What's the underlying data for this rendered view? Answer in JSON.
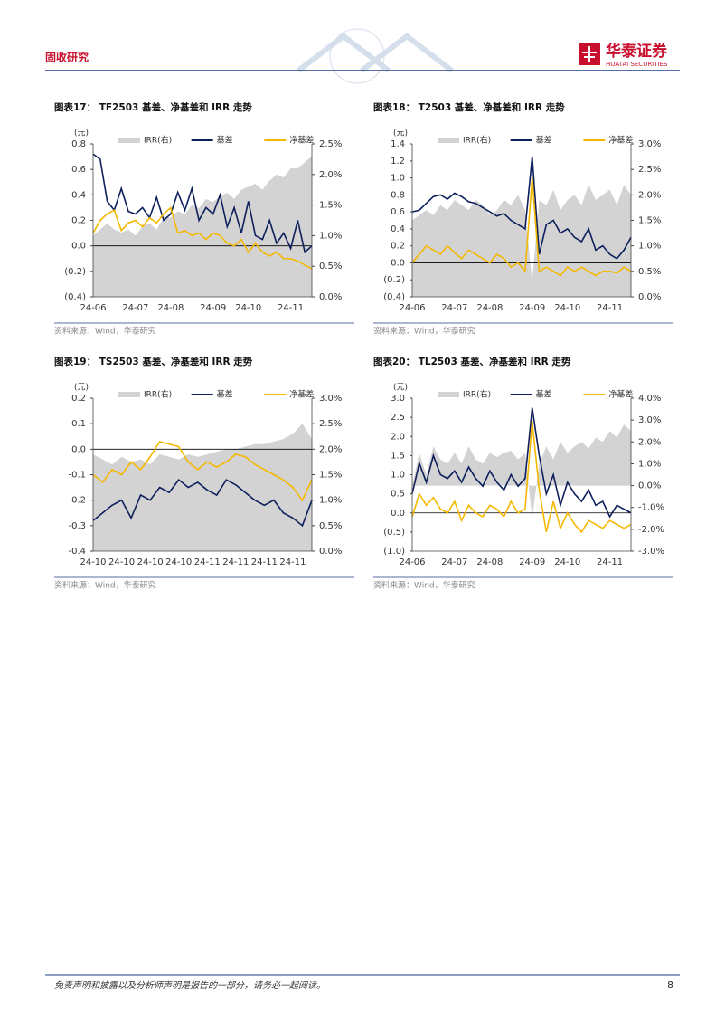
{
  "header": {
    "section": "固收研究",
    "brand": "华泰证券",
    "brand_en": "HUATAI SECURITIES"
  },
  "chart_data": [
    {
      "type": "line",
      "title": "图表17：  TF2503 基差、净基差和 IRR 走势",
      "y_unit": "(元)",
      "source": "资料来源：Wind，华泰研究",
      "categories": [
        "24-06",
        null,
        null,
        null,
        null,
        null,
        "24-07",
        null,
        null,
        null,
        null,
        "24-08",
        null,
        null,
        null,
        null,
        null,
        "24-09",
        null,
        null,
        null,
        null,
        "24-10",
        null,
        null,
        null,
        null,
        null,
        "24-11",
        null,
        null,
        null
      ],
      "ylim": [
        -0.4,
        0.8
      ],
      "yticks": [
        {
          "value": -0.4,
          "label": "(0.4)"
        },
        {
          "value": -0.2,
          "label": "(0.2)"
        },
        {
          "value": 0,
          "label": "0.0"
        },
        0.2,
        0.4,
        0.6,
        0.8
      ],
      "y2lim": [
        0,
        2.5
      ],
      "y2ticks": [
        {
          "value": 0,
          "label": "0.0%"
        },
        {
          "value": 0.5,
          "label": "0.5%"
        },
        {
          "value": 1,
          "label": "1.0%"
        },
        {
          "value": 1.5,
          "label": "1.5%"
        },
        {
          "value": 2,
          "label": "2.0%"
        },
        {
          "value": 2.5,
          "label": "2.5%"
        }
      ],
      "series": [
        {
          "name": "IRR(右)",
          "type": "area",
          "axis": "y2",
          "color": "#d3d3d3",
          "values": [
            1.0,
            1.1,
            1.2,
            1.1,
            1.05,
            1.1,
            1.0,
            1.15,
            1.2,
            1.1,
            1.3,
            1.3,
            1.4,
            1.35,
            1.5,
            1.45,
            1.6,
            1.55,
            1.65,
            1.7,
            1.6,
            1.75,
            1.8,
            1.85,
            1.75,
            1.9,
            2.0,
            1.95,
            2.1,
            2.1,
            2.2,
            2.3
          ]
        },
        {
          "name": "基差",
          "type": "line",
          "color": "#0d1f5c",
          "values": [
            0.72,
            0.68,
            0.35,
            0.28,
            0.45,
            0.27,
            0.25,
            0.3,
            0.22,
            0.38,
            0.2,
            0.25,
            0.42,
            0.28,
            0.45,
            0.2,
            0.3,
            0.25,
            0.4,
            0.15,
            0.3,
            0.1,
            0.35,
            0.08,
            0.05,
            0.2,
            0.02,
            0.1,
            -0.02,
            0.2,
            -0.05,
            0.0
          ]
        },
        {
          "name": "净基差",
          "type": "line",
          "color": "#f5b800",
          "values": [
            0.1,
            0.2,
            0.25,
            0.28,
            0.12,
            0.18,
            0.2,
            0.15,
            0.22,
            0.18,
            0.25,
            0.3,
            0.1,
            0.12,
            0.08,
            0.1,
            0.05,
            0.1,
            0.08,
            0.02,
            0.0,
            0.05,
            -0.05,
            0.02,
            -0.05,
            -0.08,
            -0.05,
            -0.1,
            -0.1,
            -0.12,
            -0.15,
            -0.18
          ]
        }
      ]
    },
    {
      "type": "line",
      "title": "图表18：  T2503 基差、净基差和 IRR 走势",
      "y_unit": "(元)",
      "source": "资料来源：Wind，华泰研究",
      "categories": [
        "24-06",
        null,
        null,
        null,
        null,
        null,
        "24-07",
        null,
        null,
        null,
        null,
        "24-08",
        null,
        null,
        null,
        null,
        null,
        "24-09",
        null,
        null,
        null,
        null,
        "24-10",
        null,
        null,
        null,
        null,
        null,
        "24-11",
        null,
        null,
        null
      ],
      "ylim": [
        -0.4,
        1.4
      ],
      "yticks": [
        {
          "value": -0.4,
          "label": "(0.4)"
        },
        {
          "value": -0.2,
          "label": "(0.2)"
        },
        {
          "value": 0,
          "label": "0.0"
        },
        0.2,
        0.4,
        0.6,
        0.8,
        {
          "value": 1,
          "label": "1.0"
        },
        1.2,
        1.4
      ],
      "y2lim": [
        0,
        3
      ],
      "y2ticks": [
        {
          "value": 0,
          "label": "0.0%"
        },
        {
          "value": 0.5,
          "label": "0.5%"
        },
        {
          "value": 1,
          "label": "1.0%"
        },
        {
          "value": 1.5,
          "label": "1.5%"
        },
        {
          "value": 2,
          "label": "2.0%"
        },
        {
          "value": 2.5,
          "label": "2.5%"
        },
        {
          "value": 3,
          "label": "3.0%"
        }
      ],
      "series": [
        {
          "name": "IRR(右)",
          "type": "area",
          "axis": "y2",
          "color": "#d3d3d3",
          "values": [
            1.5,
            1.6,
            1.7,
            1.6,
            1.8,
            1.7,
            1.9,
            1.8,
            1.7,
            1.9,
            1.8,
            1.6,
            1.7,
            1.9,
            1.8,
            2.0,
            1.7,
            0.3,
            1.9,
            1.8,
            2.1,
            1.7,
            1.9,
            2.0,
            1.8,
            2.2,
            1.9,
            2.0,
            2.1,
            1.8,
            2.2,
            2.0
          ]
        },
        {
          "name": "基差",
          "type": "line",
          "color": "#0d1f5c",
          "values": [
            0.6,
            0.62,
            0.7,
            0.78,
            0.8,
            0.75,
            0.82,
            0.78,
            0.72,
            0.7,
            0.65,
            0.6,
            0.55,
            0.58,
            0.5,
            0.45,
            0.4,
            1.25,
            0.1,
            0.45,
            0.5,
            0.35,
            0.4,
            0.3,
            0.25,
            0.4,
            0.15,
            0.2,
            0.1,
            0.05,
            0.15,
            0.3
          ]
        },
        {
          "name": "净基差",
          "type": "line",
          "color": "#f5b800",
          "values": [
            0.0,
            0.1,
            0.2,
            0.15,
            0.1,
            0.2,
            0.12,
            0.05,
            0.15,
            0.1,
            0.05,
            0.0,
            0.1,
            0.05,
            -0.05,
            0.0,
            -0.1,
            1.0,
            -0.1,
            -0.05,
            -0.1,
            -0.15,
            -0.05,
            -0.1,
            -0.05,
            -0.1,
            -0.15,
            -0.1,
            -0.1,
            -0.12,
            -0.05,
            -0.1
          ]
        }
      ]
    },
    {
      "type": "line",
      "title": "图表19：  TS2503 基差、净基差和 IRR 走势",
      "y_unit": "(元)",
      "source": "资料来源：Wind，华泰研究",
      "categories": [
        "24-10",
        null,
        null,
        "24-10",
        null,
        null,
        "24-10",
        null,
        null,
        "24-10",
        null,
        null,
        "24-11",
        null,
        null,
        "24-11",
        null,
        null,
        "24-11",
        null,
        null,
        "24-11",
        null,
        null
      ],
      "ylim": [
        -0.4,
        0.2
      ],
      "yticks": [
        -0.4,
        -0.3,
        -0.2,
        -0.1,
        {
          "value": 0,
          "label": "0.0"
        },
        0.1,
        0.2
      ],
      "y2lim": [
        0,
        3
      ],
      "y2ticks": [
        {
          "value": 0,
          "label": "0.0%"
        },
        {
          "value": 0.5,
          "label": "0.5%"
        },
        {
          "value": 1,
          "label": "1.0%"
        },
        {
          "value": 1.5,
          "label": "1.5%"
        },
        {
          "value": 2,
          "label": "2.0%"
        },
        {
          "value": 2.5,
          "label": "2.5%"
        },
        {
          "value": 3,
          "label": "3.0%"
        }
      ],
      "series": [
        {
          "name": "IRR(右)",
          "type": "area",
          "axis": "y2",
          "color": "#d3d3d3",
          "values": [
            1.9,
            1.8,
            1.7,
            1.85,
            1.75,
            1.8,
            1.7,
            1.9,
            1.85,
            1.8,
            1.9,
            1.85,
            1.9,
            1.95,
            2.0,
            2.0,
            2.05,
            2.1,
            2.1,
            2.15,
            2.2,
            2.3,
            2.5,
            2.2
          ]
        },
        {
          "name": "基差",
          "type": "line",
          "color": "#0d1f5c",
          "values": [
            -0.28,
            -0.25,
            -0.22,
            -0.2,
            -0.27,
            -0.18,
            -0.2,
            -0.15,
            -0.17,
            -0.12,
            -0.15,
            -0.13,
            -0.16,
            -0.18,
            -0.12,
            -0.14,
            -0.17,
            -0.2,
            -0.22,
            -0.2,
            -0.25,
            -0.27,
            -0.3,
            -0.2
          ]
        },
        {
          "name": "净基差",
          "type": "line",
          "color": "#f5b800",
          "values": [
            -0.1,
            -0.13,
            -0.08,
            -0.1,
            -0.05,
            -0.08,
            -0.03,
            0.03,
            0.02,
            0.01,
            -0.05,
            -0.08,
            -0.05,
            -0.07,
            -0.05,
            -0.02,
            -0.03,
            -0.06,
            -0.08,
            -0.1,
            -0.12,
            -0.15,
            -0.2,
            -0.12
          ]
        }
      ]
    },
    {
      "type": "line",
      "title": "图表20：  TL2503 基差、净基差和 IRR 走势",
      "y_unit": "(元)",
      "source": "资料来源：Wind，华泰研究",
      "categories": [
        "24-06",
        null,
        null,
        null,
        null,
        null,
        "24-07",
        null,
        null,
        null,
        null,
        "24-08",
        null,
        null,
        null,
        null,
        null,
        "24-09",
        null,
        null,
        null,
        null,
        "24-10",
        null,
        null,
        null,
        null,
        null,
        "24-11",
        null,
        null,
        null
      ],
      "ylim": [
        -1,
        3
      ],
      "yticks": [
        {
          "value": -1,
          "label": "(1.0)"
        },
        {
          "value": -0.5,
          "label": "(0.5)"
        },
        {
          "value": 0,
          "label": "0.0"
        },
        0.5,
        {
          "value": 1,
          "label": "1.0"
        },
        1.5,
        {
          "value": 2,
          "label": "2.0"
        },
        2.5,
        {
          "value": 3,
          "label": "3.0"
        }
      ],
      "y2lim": [
        -3,
        4
      ],
      "y2ticks": [
        {
          "value": -3,
          "label": "-3.0%"
        },
        {
          "value": -2,
          "label": "-2.0%"
        },
        {
          "value": -1,
          "label": "-1.0%"
        },
        {
          "value": 0,
          "label": "0.0%"
        },
        {
          "value": 1,
          "label": "1.0%"
        },
        {
          "value": 2,
          "label": "2.0%"
        },
        {
          "value": 3,
          "label": "3.0%"
        },
        {
          "value": 4,
          "label": "4.0%"
        }
      ],
      "series": [
        {
          "name": "IRR(右)",
          "type": "area",
          "axis": "y2",
          "color": "#d3d3d3",
          "values": [
            0,
            1.5,
            0.5,
            1.8,
            1.2,
            1.0,
            1.5,
            1.0,
            1.8,
            1.2,
            1.0,
            1.5,
            1.3,
            1.5,
            1.6,
            1.2,
            1.5,
            -1.5,
            1.0,
            1.8,
            1.2,
            2.0,
            1.5,
            1.8,
            2.0,
            1.7,
            2.2,
            2.0,
            2.5,
            2.2,
            2.8,
            2.5
          ]
        },
        {
          "name": "基差",
          "type": "line",
          "color": "#0d1f5c",
          "values": [
            0.5,
            1.3,
            0.8,
            1.5,
            1.0,
            0.9,
            1.1,
            0.8,
            1.2,
            0.9,
            0.7,
            1.1,
            0.8,
            0.6,
            1.0,
            0.7,
            0.9,
            2.75,
            1.5,
            0.5,
            1.0,
            0.2,
            0.8,
            0.5,
            0.3,
            0.6,
            0.2,
            0.3,
            -0.1,
            0.2,
            0.1,
            0.0
          ]
        },
        {
          "name": "净基差",
          "type": "line",
          "color": "#f5b800",
          "values": [
            -0.1,
            0.5,
            0.2,
            0.4,
            0.1,
            0.0,
            0.3,
            -0.2,
            0.2,
            0.0,
            -0.1,
            0.2,
            0.1,
            -0.1,
            0.3,
            0.0,
            0.1,
            2.4,
            0.6,
            -0.5,
            0.3,
            -0.4,
            0.0,
            -0.3,
            -0.5,
            -0.2,
            -0.3,
            -0.4,
            -0.2,
            -0.3,
            -0.4,
            -0.3
          ]
        }
      ]
    }
  ],
  "footer": {
    "disclaimer": "免责声明和披露以及分析师声明是报告的一部分，请务必一起阅读。",
    "page": 8
  }
}
